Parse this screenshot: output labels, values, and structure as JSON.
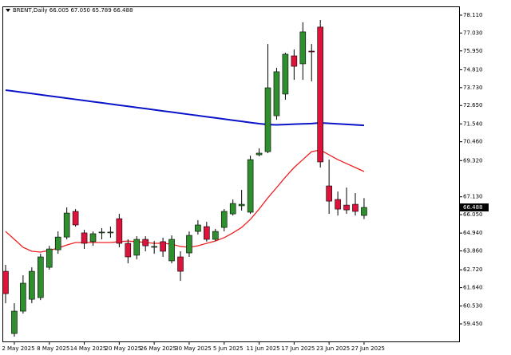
{
  "chart_data": {
    "type": "candlestick",
    "title": "BRENT,Daily 66.005 67.050 65.789 66.488",
    "categories": [
      null,
      "2 May 2025",
      null,
      null,
      null,
      "8 May 2025",
      null,
      null,
      null,
      "14 May 2025",
      null,
      null,
      null,
      "20 May 2025",
      null,
      null,
      null,
      "26 May 2025",
      null,
      null,
      null,
      "30 May 2025",
      null,
      null,
      null,
      "5 Jun 2025",
      null,
      null,
      null,
      "11 Jun 2025",
      null,
      null,
      null,
      "17 Jun 2025",
      null,
      null,
      null,
      "23 Jun 2025",
      null,
      null,
      null,
      "27 Jun 2025"
    ],
    "open": [
      62.63,
      58.87,
      60.22,
      60.94,
      61.04,
      62.87,
      63.93,
      64.7,
      66.25,
      64.95,
      64.42,
      64.95,
      64.95,
      65.81,
      64.32,
      63.6,
      64.56,
      64.08,
      64.42,
      63.26,
      63.5,
      63.74,
      65.04,
      65.33,
      64.56,
      65.28,
      66.1,
      66.59,
      66.2,
      69.67,
      69.86,
      72.03,
      73.34,
      75.65,
      75.17,
      75.94,
      77.39,
      67.79,
      66.97,
      66.63,
      66.68,
      66.005
    ],
    "high": [
      63.02,
      60.7,
      62.39,
      62.87,
      63.69,
      64.17,
      65.04,
      66.49,
      66.39,
      65.14,
      65.04,
      65.24,
      65.33,
      66.1,
      64.56,
      64.75,
      64.75,
      64.46,
      64.66,
      64.8,
      63.84,
      65.04,
      65.72,
      65.62,
      65.19,
      66.39,
      66.97,
      67.55,
      69.62,
      70.06,
      76.37,
      74.93,
      75.84,
      76.04,
      77.68,
      76.37,
      77.82,
      69.38,
      67.45,
      67.69,
      67.36,
      67.05
    ],
    "low": [
      60.7,
      58.68,
      60.07,
      60.7,
      60.89,
      62.73,
      63.69,
      64.56,
      65.33,
      63.98,
      64.17,
      64.56,
      64.66,
      64.08,
      63.11,
      63.35,
      63.84,
      63.69,
      63.5,
      63.11,
      62.05,
      63.5,
      64.85,
      64.42,
      64.46,
      65.04,
      66.0,
      66.3,
      66.1,
      69.58,
      69.77,
      71.79,
      73.0,
      74.2,
      74.2,
      74.11,
      68.9,
      66.1,
      66.0,
      66.1,
      66.0,
      65.789
    ],
    "close": [
      61.28,
      60.22,
      61.91,
      62.63,
      63.5,
      63.98,
      64.7,
      66.15,
      65.43,
      64.32,
      64.9,
      65.0,
      65.0,
      64.32,
      63.5,
      64.56,
      64.17,
      64.13,
      63.84,
      64.56,
      62.63,
      64.8,
      65.43,
      64.56,
      65.04,
      66.25,
      66.73,
      66.68,
      69.38,
      69.77,
      73.72,
      74.69,
      75.75,
      75.02,
      77.1,
      75.89,
      69.24,
      66.87,
      66.39,
      66.34,
      66.25,
      66.488
    ],
    "up_color": "#2f8f2f",
    "down_color": "#dc143c",
    "lines": [
      {
        "color": "#0a14c8",
        "values": [
          73.58,
          73.51,
          73.44,
          73.37,
          73.3,
          73.23,
          73.16,
          73.09,
          73.02,
          72.95,
          72.88,
          72.81,
          72.74,
          72.67,
          72.6,
          72.53,
          72.46,
          72.39,
          72.32,
          72.25,
          72.18,
          72.11,
          72.04,
          71.97,
          71.9,
          71.83,
          71.76,
          71.69,
          71.62,
          71.55,
          71.5,
          71.48,
          71.5,
          71.52,
          71.54,
          71.56,
          71.6,
          71.57,
          71.54,
          71.51,
          71.48,
          71.45
        ]
      },
      {
        "color": "#f02020",
        "values": [
          65.04,
          64.56,
          64.08,
          63.84,
          63.79,
          63.89,
          64.03,
          64.22,
          64.37,
          64.37,
          64.37,
          64.37,
          64.37,
          64.42,
          64.46,
          64.42,
          64.37,
          64.32,
          64.32,
          64.27,
          64.13,
          64.08,
          64.17,
          64.32,
          64.46,
          64.66,
          64.95,
          65.28,
          65.77,
          66.39,
          67.07,
          67.69,
          68.32,
          68.9,
          69.38,
          69.86,
          69.96,
          69.67,
          69.38,
          69.14,
          68.9,
          68.66
        ]
      }
    ],
    "last_price": 66.488,
    "ylim": [
      58.39,
      78.64
    ],
    "yticks": [
      {
        "value": 78.11,
        "label": "78.110"
      },
      {
        "value": 77.03,
        "label": "77.030"
      },
      {
        "value": 75.95,
        "label": "75.950"
      },
      {
        "value": 74.81,
        "label": "74.810"
      },
      {
        "value": 73.73,
        "label": "73.730"
      },
      {
        "value": 72.65,
        "label": "72.650"
      },
      {
        "value": 71.54,
        "label": "71.540"
      },
      {
        "value": 70.46,
        "label": "70.460"
      },
      {
        "value": 69.32,
        "label": "69.320"
      },
      {
        "value": 67.13,
        "label": "67.130"
      },
      {
        "value": 66.05,
        "label": "66.050"
      },
      {
        "value": 64.94,
        "label": "64.940"
      },
      {
        "value": 63.86,
        "label": "63.860"
      },
      {
        "value": 62.72,
        "label": "62.720"
      },
      {
        "value": 61.64,
        "label": "61.640"
      },
      {
        "value": 60.53,
        "label": "60.530"
      },
      {
        "value": 59.45,
        "label": "59.450"
      }
    ]
  }
}
